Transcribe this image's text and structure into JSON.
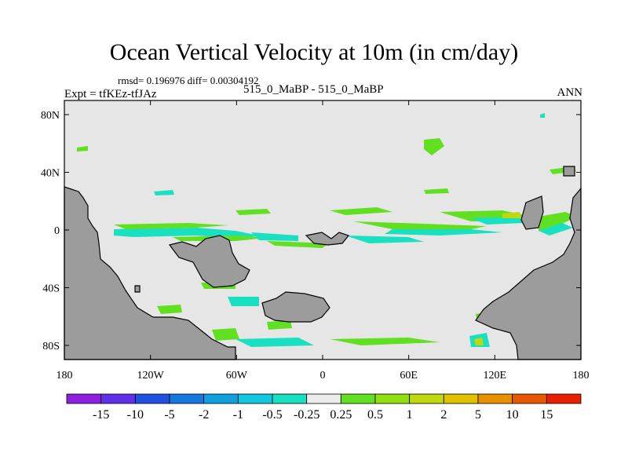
{
  "title": "Ocean Vertical Velocity at 10m (in cm/day)",
  "stats_text": "rmsd= 0.196976 diff= 0.00304192",
  "expt_text": "Expt = tfKEz-tfJAz",
  "cases_text": "515_0_MaBP - 515_0_MaBP",
  "season": "ANN",
  "map": {
    "lon_ticks": [
      "180",
      "120W",
      "60W",
      "0",
      "60E",
      "120E",
      "180"
    ],
    "lat_ticks": [
      "80N",
      "40N",
      "0",
      "40S",
      "80S"
    ],
    "ocean_color": "#e6e6e6",
    "land_color": "#9c9c9c"
  },
  "colorbar": {
    "colors": [
      "#9020e0",
      "#6030e8",
      "#2050e0",
      "#1478e0",
      "#10a0e0",
      "#10c8e0",
      "#18e0c0",
      "#ececec",
      "#60e020",
      "#90e010",
      "#c0d810",
      "#e0c000",
      "#e89000",
      "#e85800",
      "#e82000"
    ],
    "labels": [
      "-15",
      "-10",
      "-5",
      "-2",
      "-1",
      "-0.5",
      "-0.25",
      "0.25",
      "0.5",
      "1",
      "2",
      "5",
      "10",
      "15"
    ]
  }
}
